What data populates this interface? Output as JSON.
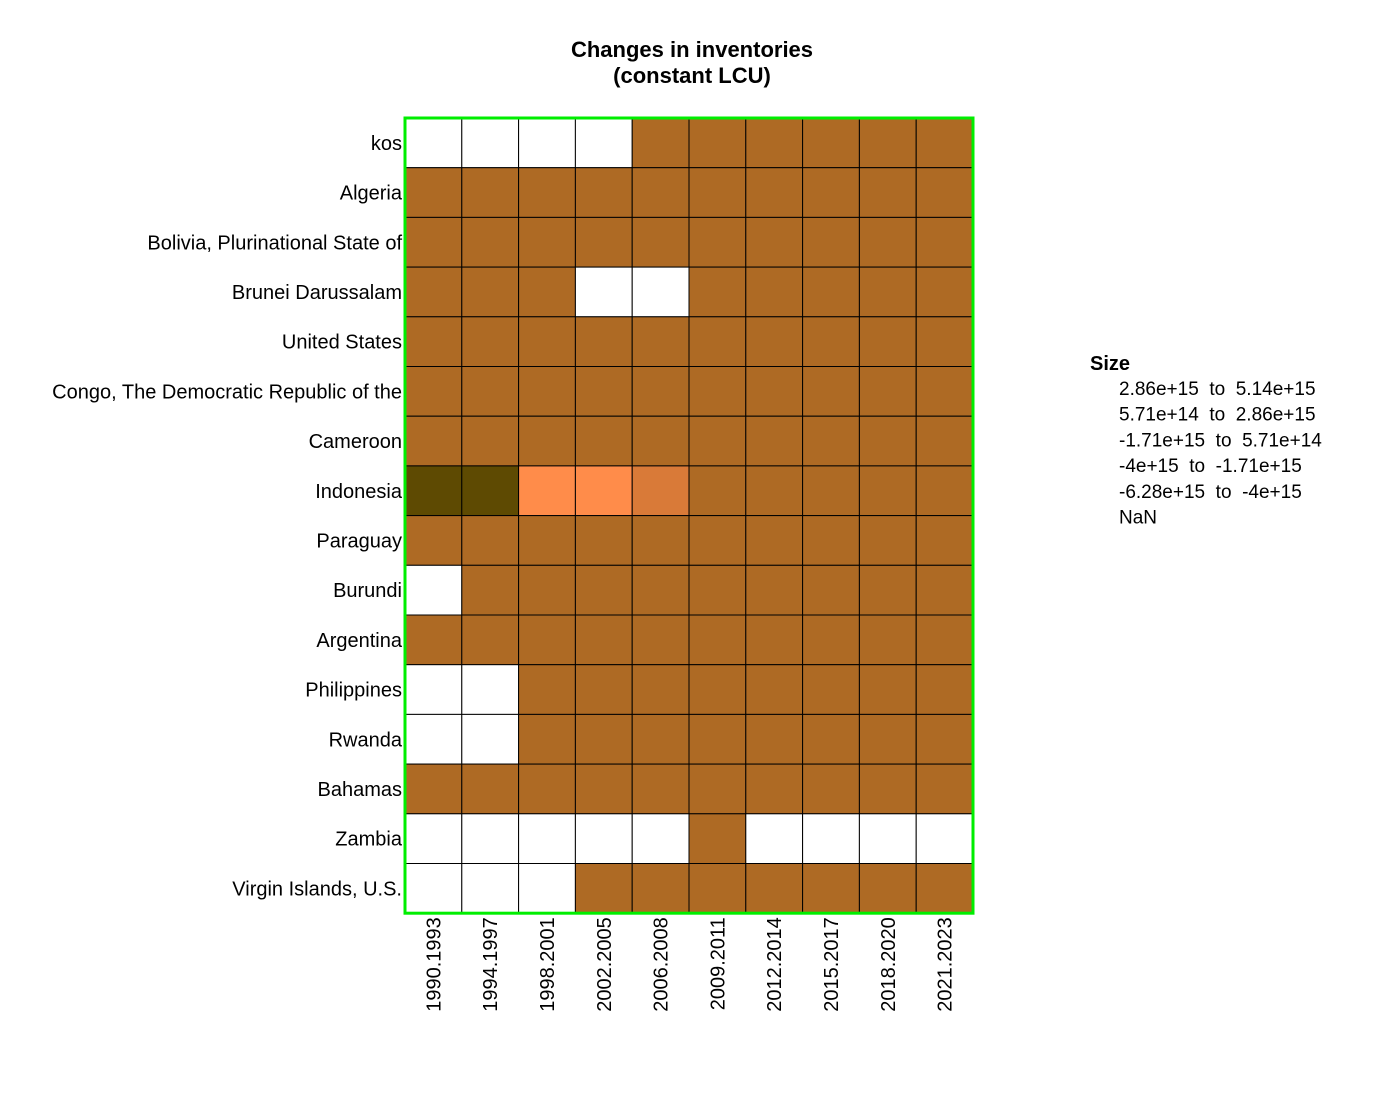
{
  "chart_data": {
    "type": "heatmap",
    "title": [
      "Changes in inventories",
      "(constant LCU)"
    ],
    "columns": [
      "1990.1993",
      "1994.1997",
      "1998.2001",
      "2002.2005",
      "2006.2008",
      "2009.2011",
      "2012.2014",
      "2015.2017",
      "2018.2020",
      "2021.2023"
    ],
    "rows": [
      "kos",
      "Algeria",
      "Bolivia, Plurinational State of",
      "Brunei Darussalam",
      "United States",
      "Congo, The Democratic Republic of the",
      "Cameroon",
      "Indonesia",
      "Paraguay",
      "Burundi",
      "Argentina",
      "Philippines",
      "Rwanda",
      "Bahamas",
      "Zambia",
      "Virgin Islands, U.S."
    ],
    "cells": [
      [
        5,
        5,
        5,
        5,
        2,
        2,
        2,
        2,
        2,
        2
      ],
      [
        2,
        2,
        2,
        2,
        2,
        2,
        2,
        2,
        2,
        2
      ],
      [
        2,
        2,
        2,
        2,
        2,
        2,
        2,
        2,
        2,
        2
      ],
      [
        2,
        2,
        2,
        5,
        5,
        2,
        2,
        2,
        2,
        2
      ],
      [
        2,
        2,
        2,
        2,
        2,
        2,
        2,
        2,
        2,
        2
      ],
      [
        2,
        2,
        2,
        2,
        2,
        2,
        2,
        2,
        2,
        2
      ],
      [
        2,
        2,
        2,
        2,
        2,
        2,
        2,
        2,
        2,
        2
      ],
      [
        4,
        4,
        0,
        0,
        1,
        2,
        2,
        2,
        2,
        2
      ],
      [
        2,
        2,
        2,
        2,
        2,
        2,
        2,
        2,
        2,
        2
      ],
      [
        5,
        2,
        2,
        2,
        2,
        2,
        2,
        2,
        2,
        2
      ],
      [
        2,
        2,
        2,
        2,
        2,
        2,
        2,
        2,
        2,
        2
      ],
      [
        5,
        5,
        2,
        2,
        2,
        2,
        2,
        2,
        2,
        2
      ],
      [
        5,
        5,
        2,
        2,
        2,
        2,
        2,
        2,
        2,
        2
      ],
      [
        2,
        2,
        2,
        2,
        2,
        2,
        2,
        2,
        2,
        2
      ],
      [
        5,
        5,
        5,
        5,
        5,
        2,
        5,
        5,
        5,
        5
      ],
      [
        5,
        5,
        5,
        2,
        2,
        2,
        2,
        2,
        2,
        2
      ]
    ],
    "legend": {
      "title": "Size",
      "entries": [
        {
          "label": "2.86e+15  to  5.14e+15",
          "color": "#ff8c4a"
        },
        {
          "label": "5.71e+14  to  2.86e+15",
          "color": "#d97a38"
        },
        {
          "label": "-1.71e+15  to  5.71e+14",
          "color": "#ae6a24"
        },
        {
          "label": "-4e+15  to  -1.71e+15",
          "color": "#8a5a14"
        },
        {
          "label": "-6.28e+15  to  -4e+15",
          "color": "#5e4a02"
        },
        {
          "label": "NaN",
          "color": "#ffffff"
        }
      ],
      "placement": "right"
    },
    "border_color": "#00ee00"
  }
}
